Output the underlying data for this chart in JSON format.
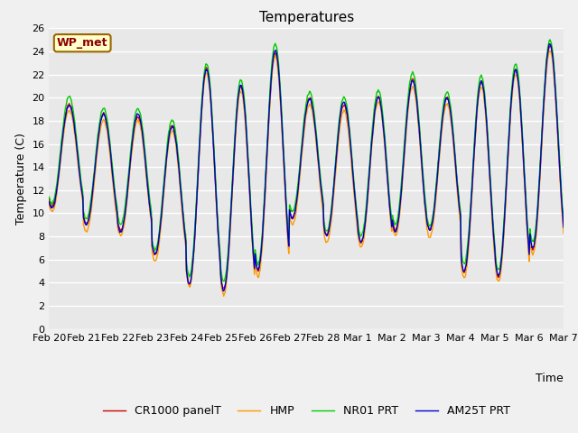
{
  "title": "Temperatures",
  "xlabel": "Time",
  "ylabel": "Temperature (C)",
  "ylim": [
    0,
    26
  ],
  "n_days": 15,
  "tick_labels": [
    "Feb 20",
    "Feb 21",
    "Feb 22",
    "Feb 23",
    "Feb 24",
    "Feb 25",
    "Feb 26",
    "Feb 27",
    "Feb 28",
    "Mar 1",
    "Mar 2",
    "Mar 3",
    "Mar 4",
    "Mar 5",
    "Mar 6",
    "Mar 7"
  ],
  "series_colors": [
    "#cc0000",
    "#ff9900",
    "#00cc00",
    "#0000cc"
  ],
  "series_names": [
    "CR1000 panelT",
    "HMP",
    "NR01 PRT",
    "AM25T PRT"
  ],
  "fig_bg_color": "#f0f0f0",
  "plot_bg_color": "#e8e8e8",
  "annotation_text": "WP_met",
  "annotation_bg": "#ffffcc",
  "annotation_border": "#996600",
  "grid_color": "#ffffff",
  "title_fontsize": 11,
  "label_fontsize": 9,
  "tick_fontsize": 8,
  "legend_fontsize": 9,
  "line_width": 1.0,
  "peaks": [
    19.5,
    18.5,
    18.5,
    17.5,
    22.5,
    21.0,
    24.0,
    20.0,
    19.5,
    20.0,
    21.5,
    20.0,
    21.5,
    22.5,
    24.5
  ],
  "troughs": [
    10.5,
    9.0,
    8.5,
    6.5,
    4.0,
    3.5,
    5.0,
    9.5,
    8.0,
    7.5,
    8.5,
    8.5,
    5.0,
    4.5,
    7.0
  ],
  "pts_per_day": 48
}
